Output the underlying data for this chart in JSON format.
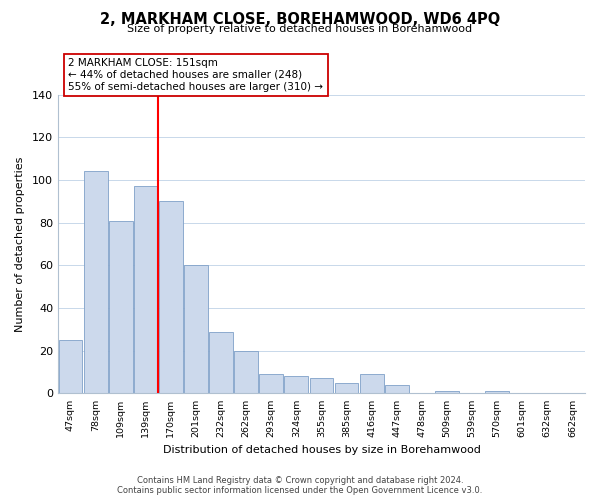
{
  "title": "2, MARKHAM CLOSE, BOREHAMWOOD, WD6 4PQ",
  "subtitle": "Size of property relative to detached houses in Borehamwood",
  "xlabel": "Distribution of detached houses by size in Borehamwood",
  "ylabel": "Number of detached properties",
  "bar_labels": [
    "47sqm",
    "78sqm",
    "109sqm",
    "139sqm",
    "170sqm",
    "201sqm",
    "232sqm",
    "262sqm",
    "293sqm",
    "324sqm",
    "355sqm",
    "385sqm",
    "416sqm",
    "447sqm",
    "478sqm",
    "509sqm",
    "539sqm",
    "570sqm",
    "601sqm",
    "632sqm",
    "662sqm"
  ],
  "bar_values": [
    25,
    104,
    81,
    97,
    90,
    60,
    29,
    20,
    9,
    8,
    7,
    5,
    9,
    4,
    0,
    1,
    0,
    1,
    0,
    0,
    0
  ],
  "bar_color": "#ccd9ec",
  "bar_edge_color": "#7fa0c8",
  "ylim": [
    0,
    140
  ],
  "yticks": [
    0,
    20,
    40,
    60,
    80,
    100,
    120,
    140
  ],
  "property_line_label": "2 MARKHAM CLOSE: 151sqm",
  "annotation_line1": "← 44% of detached houses are smaller (248)",
  "annotation_line2": "55% of semi-detached houses are larger (310) →",
  "footer_line1": "Contains HM Land Registry data © Crown copyright and database right 2024.",
  "footer_line2": "Contains public sector information licensed under the Open Government Licence v3.0.",
  "background_color": "#ffffff",
  "grid_color": "#c8d8ea"
}
